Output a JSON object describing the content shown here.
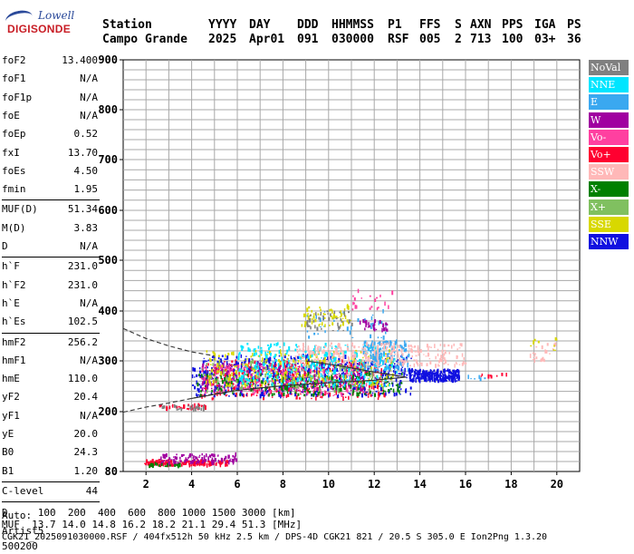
{
  "logo": {
    "top": "Lowell",
    "bottom": "DIGISONDE"
  },
  "header": {
    "columns": [
      {
        "h": "Station",
        "v": "Campo Grande"
      },
      {
        "h": "YYYY",
        "v": "2025"
      },
      {
        "h": "DAY",
        "v": "Apr01"
      },
      {
        "h": "DDD",
        "v": "091"
      },
      {
        "h": "HHMMSS",
        "v": "030000"
      },
      {
        "h": "P1",
        "v": "RSF"
      },
      {
        "h": "FFS",
        "v": "005"
      },
      {
        "h": "S",
        "v": "2"
      },
      {
        "h": "AXN",
        "v": "713"
      },
      {
        "h": "PPS",
        "v": "100"
      },
      {
        "h": "IGA",
        "v": "03+"
      },
      {
        "h": "PS",
        "v": "36"
      }
    ]
  },
  "params": {
    "group1": [
      {
        "k": "foF2",
        "v": "13.400"
      },
      {
        "k": "foF1",
        "v": "N/A"
      },
      {
        "k": "foF1p",
        "v": "N/A"
      },
      {
        "k": "foE",
        "v": "N/A"
      },
      {
        "k": "foEp",
        "v": "0.52"
      },
      {
        "k": "fxI",
        "v": "13.70"
      },
      {
        "k": "foEs",
        "v": "4.50"
      },
      {
        "k": "fmin",
        "v": "1.95"
      }
    ],
    "group2": [
      {
        "k": "MUF(D)",
        "v": "51.34"
      },
      {
        "k": "M(D)",
        "v": "3.83"
      },
      {
        "k": "D",
        "v": "N/A"
      }
    ],
    "group3": [
      {
        "k": "h`F",
        "v": "231.0"
      },
      {
        "k": "h`F2",
        "v": "231.0"
      },
      {
        "k": "h`E",
        "v": "N/A"
      },
      {
        "k": "h`Es",
        "v": "102.5"
      }
    ],
    "group4": [
      {
        "k": "hmF2",
        "v": "256.2"
      },
      {
        "k": "hmF1",
        "v": "N/A"
      },
      {
        "k": "hmE",
        "v": "110.0"
      },
      {
        "k": "yF2",
        "v": "20.4"
      },
      {
        "k": "yF1",
        "v": "N/A"
      },
      {
        "k": "yE",
        "v": "20.0"
      },
      {
        "k": "B0",
        "v": "24.3"
      },
      {
        "k": "B1",
        "v": "1.20"
      }
    ],
    "group5": [
      {
        "k": "C-level",
        "v": "44"
      }
    ]
  },
  "auto": {
    "line1": "Auto:",
    "line2": "Artist5",
    "line3": "500200"
  },
  "legend": [
    {
      "label": "NoVal",
      "color": "#808080"
    },
    {
      "label": "NNE",
      "color": "#00e5ff"
    },
    {
      "label": "E",
      "color": "#3aa8f0"
    },
    {
      "label": "W",
      "color": "#a000a0"
    },
    {
      "label": "Vo-",
      "color": "#ff40a0"
    },
    {
      "label": "Vo+",
      "color": "#ff0030"
    },
    {
      "label": "SSW",
      "color": "#ffb8b8"
    },
    {
      "label": "X-",
      "color": "#008000"
    },
    {
      "label": "X+",
      "color": "#80c060"
    },
    {
      "label": "SSE",
      "color": "#d8d800"
    },
    {
      "label": "NNW",
      "color": "#1010e0"
    }
  ],
  "footer": {
    "line1": "D     100  200  400  600  800 1000 1500 3000 [km]",
    "line2": "MUF  13.7 14.0 14.8 16.2 18.2 21.1 29.4 51.3 [MHz]",
    "line3": "CGK21_2025091030000.RSF / 404fx512h 50 kHz 2.5 km / DPS-4D CGK21 821 / 20.5 S 305.0 E Ion2Png 1.3.20"
  },
  "chart_data": {
    "type": "scatter",
    "title": "",
    "xlabel": "",
    "ylabel": "",
    "xlim": [
      1,
      21
    ],
    "ylim": [
      80,
      900
    ],
    "xticks": [
      2,
      4,
      6,
      8,
      10,
      12,
      14,
      16,
      18,
      20
    ],
    "yticks": [
      80,
      200,
      300,
      400,
      500,
      600,
      700,
      800,
      900
    ],
    "grid": true,
    "legend_position": "right",
    "profile_lines": [
      {
        "style": "dashed",
        "points": [
          [
            1.0,
            199
          ],
          [
            2.0,
            209
          ],
          [
            3.0,
            217
          ],
          [
            4.0,
            226
          ],
          [
            5.0,
            235
          ],
          [
            6.0,
            242
          ],
          [
            7.0,
            247
          ],
          [
            8.0,
            251
          ],
          [
            9.0,
            254
          ]
        ]
      },
      {
        "style": "dashed",
        "points": [
          [
            1.0,
            365
          ],
          [
            2.0,
            345
          ],
          [
            3.0,
            330
          ],
          [
            4.0,
            318
          ],
          [
            5.0,
            310
          ]
        ]
      },
      {
        "style": "solid",
        "points": [
          [
            4.0,
            226
          ],
          [
            6.0,
            242
          ],
          [
            8.0,
            251
          ],
          [
            10.0,
            257
          ],
          [
            12.0,
            262
          ],
          [
            13.4,
            268
          ]
        ]
      },
      {
        "style": "solid",
        "points": [
          [
            9.0,
            300
          ],
          [
            10.5,
            290
          ],
          [
            12.0,
            278
          ],
          [
            13.4,
            268
          ]
        ]
      }
    ],
    "echo_regions": [
      {
        "name": "Vo+",
        "x": [
          1.9,
          5.6
        ],
        "y": [
          92,
          102
        ],
        "n": 160
      },
      {
        "name": "W",
        "x": [
          2.6,
          6.0
        ],
        "y": [
          95,
          115
        ],
        "n": 110
      },
      {
        "name": "X-",
        "x": [
          2.0,
          3.5
        ],
        "y": [
          90,
          96
        ],
        "n": 20
      },
      {
        "name": "Vo+",
        "x": [
          2.5,
          4.6
        ],
        "y": [
          205,
          213
        ],
        "n": 40
      },
      {
        "name": "NoVal",
        "x": [
          2.5,
          4.6
        ],
        "y": [
          203,
          212
        ],
        "n": 30
      },
      {
        "name": "Vo+",
        "x": [
          4.4,
          12.5
        ],
        "y": [
          225,
          300
        ],
        "n": 420
      },
      {
        "name": "NNW",
        "x": [
          4.0,
          13.6
        ],
        "y": [
          230,
          310
        ],
        "n": 520
      },
      {
        "name": "W",
        "x": [
          4.4,
          11.5
        ],
        "y": [
          240,
          295
        ],
        "n": 220
      },
      {
        "name": "Vo-",
        "x": [
          4.4,
          11.8
        ],
        "y": [
          230,
          290
        ],
        "n": 180
      },
      {
        "name": "X-",
        "x": [
          4.2,
          13.2
        ],
        "y": [
          232,
          275
        ],
        "n": 200
      },
      {
        "name": "X+",
        "x": [
          4.4,
          12.5
        ],
        "y": [
          240,
          300
        ],
        "n": 140
      },
      {
        "name": "SSE",
        "x": [
          4.6,
          12.8
        ],
        "y": [
          250,
          320
        ],
        "n": 220
      },
      {
        "name": "NNE",
        "x": [
          6.0,
          13.0
        ],
        "y": [
          250,
          335
        ],
        "n": 300
      },
      {
        "name": "E",
        "x": [
          11.5,
          13.5
        ],
        "y": [
          280,
          340
        ],
        "n": 150
      },
      {
        "name": "SSW",
        "x": [
          8.5,
          16.0
        ],
        "y": [
          290,
          335
        ],
        "n": 280
      },
      {
        "name": "NNW",
        "x": [
          13.5,
          15.7
        ],
        "y": [
          260,
          282
        ],
        "n": 240
      },
      {
        "name": "E",
        "x": [
          9.0,
          12.5
        ],
        "y": [
          345,
          400
        ],
        "n": 40
      },
      {
        "name": "SSE",
        "x": [
          8.8,
          11.0
        ],
        "y": [
          370,
          410
        ],
        "n": 60
      },
      {
        "name": "NoVal",
        "x": [
          9.0,
          11.0
        ],
        "y": [
          360,
          400
        ],
        "n": 40
      },
      {
        "name": "W",
        "x": [
          11.3,
          12.6
        ],
        "y": [
          360,
          380
        ],
        "n": 30
      },
      {
        "name": "Vo-",
        "x": [
          11.0,
          12.8
        ],
        "y": [
          400,
          440
        ],
        "n": 20
      },
      {
        "name": "SSW",
        "x": [
          18.8,
          20.0
        ],
        "y": [
          300,
          340
        ],
        "n": 20
      },
      {
        "name": "SSE",
        "x": [
          18.8,
          20.0
        ],
        "y": [
          320,
          345
        ],
        "n": 10
      },
      {
        "name": "Vo+",
        "x": [
          16.5,
          18.0
        ],
        "y": [
          268,
          274
        ],
        "n": 8
      },
      {
        "name": "E",
        "x": [
          16.0,
          17.0
        ],
        "y": [
          262,
          270
        ],
        "n": 6
      }
    ]
  }
}
